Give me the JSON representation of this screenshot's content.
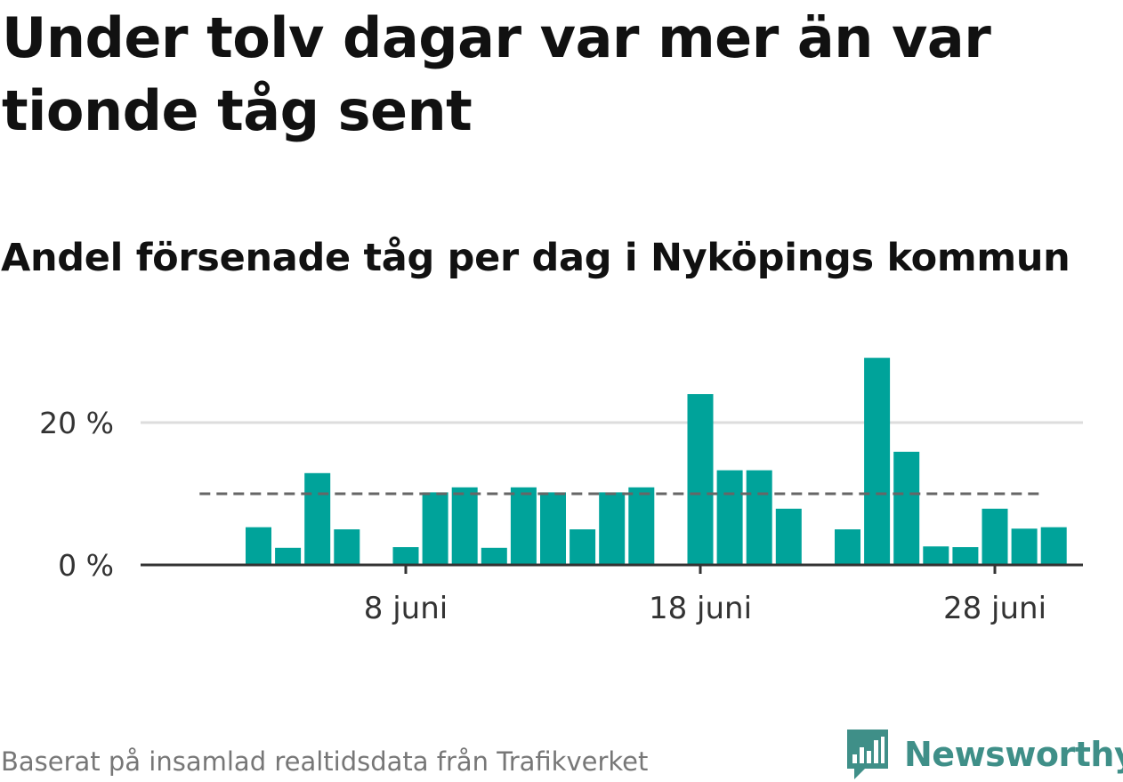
{
  "title": "Under tolv dagar var mer än var tionde tåg sent",
  "subtitle": "Andel försenade tåg per dag i Nyköpings kommun",
  "source": "Baserat på insamlad realtidsdata från Trafikverket",
  "brand": "Newsworthy",
  "colors": {
    "bar": "#00a39a",
    "reference_line": "#666666",
    "grid": "#dddddd",
    "axis": "#333333",
    "brand": "#3f8f88"
  },
  "chart_data": {
    "type": "bar",
    "x_unit": "day of June",
    "x_ticks": [
      {
        "value": 8,
        "label": "8 juni"
      },
      {
        "value": 18,
        "label": "18 juni"
      },
      {
        "value": 28,
        "label": "28 juni"
      }
    ],
    "y_ticks": [
      {
        "value": 0,
        "label": "0 %"
      },
      {
        "value": 20,
        "label": "20 %"
      }
    ],
    "ylim": [
      0,
      30
    ],
    "xlim": [
      -0.5,
      30.5
    ],
    "reference_line": {
      "value": 10,
      "style": "dashed",
      "x_from": 1,
      "x_to": 29.5
    },
    "grid": "horizontal",
    "points": [
      {
        "x": 3,
        "y": 5.3
      },
      {
        "x": 4,
        "y": 2.4
      },
      {
        "x": 5,
        "y": 12.9
      },
      {
        "x": 6,
        "y": 5.0
      },
      {
        "x": 8,
        "y": 2.5
      },
      {
        "x": 9,
        "y": 10.2
      },
      {
        "x": 10,
        "y": 10.9
      },
      {
        "x": 11,
        "y": 2.4
      },
      {
        "x": 12,
        "y": 10.9
      },
      {
        "x": 13,
        "y": 10.2
      },
      {
        "x": 14,
        "y": 5.0
      },
      {
        "x": 15,
        "y": 10.2
      },
      {
        "x": 16,
        "y": 10.9
      },
      {
        "x": 18,
        "y": 24.0
      },
      {
        "x": 19,
        "y": 13.3
      },
      {
        "x": 20,
        "y": 13.3
      },
      {
        "x": 21,
        "y": 7.9
      },
      {
        "x": 23,
        "y": 5.0
      },
      {
        "x": 24,
        "y": 29.1
      },
      {
        "x": 25,
        "y": 15.9
      },
      {
        "x": 26,
        "y": 2.6
      },
      {
        "x": 27,
        "y": 2.5
      },
      {
        "x": 28,
        "y": 7.9
      },
      {
        "x": 29,
        "y": 5.1
      },
      {
        "x": 30,
        "y": 5.3
      }
    ]
  }
}
